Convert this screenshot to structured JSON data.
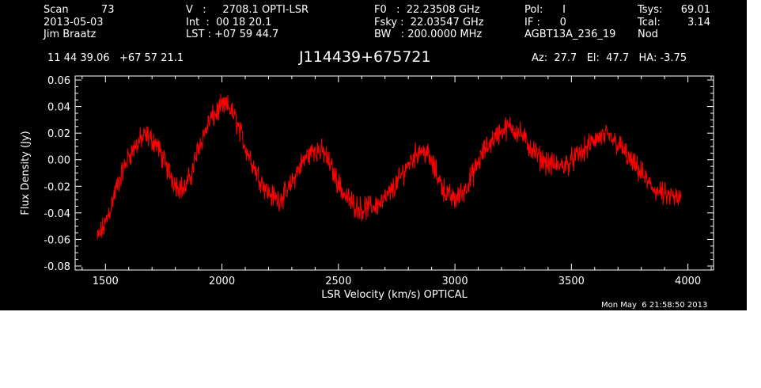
{
  "header": {
    "col1": [
      "Scan          73",
      "2013-05-03",
      "Jim Braatz"
    ],
    "col2": [
      "V   :     2708.1 OPTI-LSR",
      "Int  :  00 18 20.1",
      "LST : +07 59 44.7"
    ],
    "col3": [
      "F0   :  22.23508 GHz",
      "Fsky :  22.03547 GHz",
      "BW   : 200.0000 MHz"
    ],
    "col4": [
      "Pol:      I",
      "IF :      0",
      "AGBT13A_236_19"
    ],
    "col5a": [
      "Tsys:",
      "Tcal:",
      "Nod"
    ],
    "col5b": [
      "69.01",
      "3.14",
      ""
    ],
    "coords": "11 44 39.06   +67 57 21.1",
    "source": "J114439+675721",
    "azelha": "Az:  27.7   El:  47.7   HA: -3.75",
    "timestamp": "Mon May  6 21:58:50 2013"
  },
  "colors": {
    "background": "#000000",
    "axes": "#ffffff",
    "trace": "#ff0000"
  },
  "chart_data": {
    "type": "line",
    "title": "J114439+675721",
    "xlabel": "LSR Velocity (km/s) OPTICAL",
    "ylabel": "Flux Density (Jy)",
    "xlim": [
      1370,
      4110
    ],
    "ylim": [
      -0.083,
      0.063
    ],
    "xticks": [
      1500,
      2000,
      2500,
      3000,
      3500,
      4000
    ],
    "xtick_labels": [
      "1500",
      "2000",
      "2500",
      "3000",
      "3500",
      "4000"
    ],
    "yticks": [
      -0.08,
      -0.06,
      -0.04,
      -0.02,
      0.0,
      0.02,
      0.04,
      0.06
    ],
    "ytick_labels": [
      "-0.08",
      "-0.06",
      "-0.04",
      "-0.02",
      "0.00",
      "0.02",
      "0.04",
      "0.06"
    ],
    "grid": false,
    "series": [
      {
        "x": [
          1465,
          1500,
          1550,
          1600,
          1650,
          1680,
          1720,
          1760,
          1800,
          1840,
          1870,
          1900,
          1950,
          2000,
          2030,
          2060,
          2100,
          2150,
          2200,
          2240,
          2280,
          2320,
          2360,
          2400,
          2440,
          2480,
          2520,
          2560,
          2600,
          2650,
          2700,
          2750,
          2800,
          2850,
          2880,
          2920,
          2960,
          3000,
          3040,
          3080,
          3120,
          3160,
          3200,
          3240,
          3280,
          3320,
          3360,
          3400,
          3440,
          3480,
          3520,
          3560,
          3600,
          3640,
          3680,
          3720,
          3760,
          3800,
          3840,
          3880,
          3920,
          3970
        ],
        "y": [
          -0.06,
          -0.048,
          -0.02,
          0.003,
          0.015,
          0.018,
          0.012,
          -0.005,
          -0.018,
          -0.022,
          -0.01,
          0.01,
          0.03,
          0.04,
          0.04,
          0.03,
          0.01,
          -0.01,
          -0.025,
          -0.03,
          -0.025,
          -0.01,
          0.002,
          0.008,
          0.005,
          -0.01,
          -0.025,
          -0.033,
          -0.037,
          -0.035,
          -0.03,
          -0.018,
          -0.003,
          0.008,
          0.005,
          -0.01,
          -0.025,
          -0.03,
          -0.023,
          -0.01,
          0.005,
          0.015,
          0.022,
          0.025,
          0.02,
          0.01,
          0.002,
          -0.003,
          -0.005,
          -0.003,
          0.002,
          0.008,
          0.015,
          0.018,
          0.015,
          0.008,
          -0.003,
          -0.01,
          -0.02,
          -0.025,
          -0.028,
          -0.03
        ]
      }
    ]
  }
}
